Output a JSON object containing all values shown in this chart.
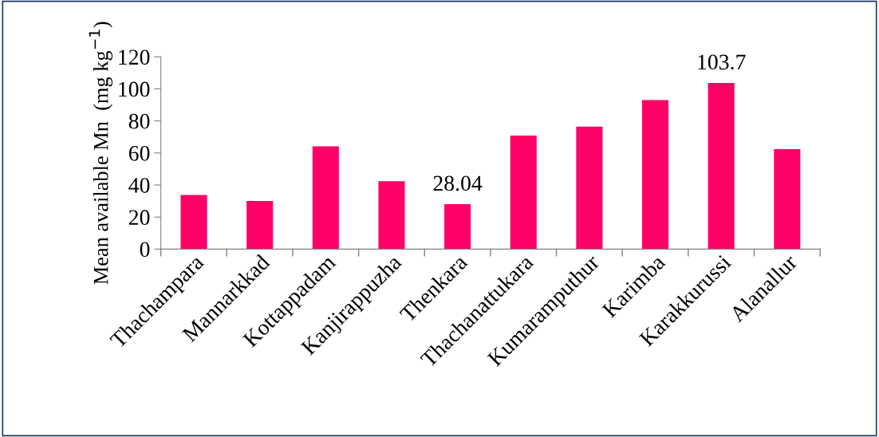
{
  "chart_data": {
    "type": "bar",
    "ylabel": "Mean available Mn  (mg kg$^{−1}$)",
    "categories": [
      "Thachampara",
      "Mannarkkad",
      "Kottappadam",
      "Kanjirappuzha",
      "Thenkara",
      "Thachanattukara",
      "Kumaramputhur",
      "Karimba",
      "Karakkurussi",
      "Alanallur"
    ],
    "values": [
      33.8,
      30.0,
      64.1,
      42.4,
      28.04,
      70.8,
      76.5,
      93.0,
      103.7,
      62.4
    ],
    "value_labels": [
      null,
      null,
      null,
      null,
      "28.04",
      null,
      null,
      null,
      "103.7",
      null
    ],
    "color": "#ff0066",
    "ylim": [
      0,
      120
    ],
    "yticks": [
      0,
      20,
      40,
      60,
      80,
      100,
      120
    ],
    "grid": false,
    "legend": false
  }
}
